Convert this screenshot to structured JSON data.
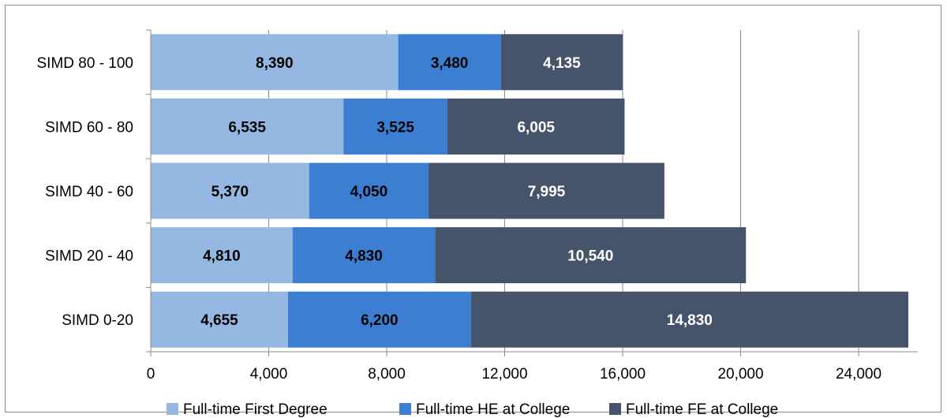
{
  "chart_data": {
    "type": "bar",
    "orientation": "horizontal",
    "stacked": true,
    "categories": [
      "SIMD 80 - 100",
      "SIMD 60 - 80",
      "SIMD 40 - 60",
      "SIMD 20 - 40",
      "SIMD 0-20"
    ],
    "series": [
      {
        "name": "Full-time First Degree",
        "color": "#95b8e3",
        "label_color": "#000000",
        "values": [
          8390,
          6535,
          5370,
          4810,
          4655
        ],
        "labels": [
          "8,390",
          "6,535",
          "5,370",
          "4,810",
          "4,655"
        ]
      },
      {
        "name": "Full-time HE at College",
        "color": "#3c7fd2",
        "label_color": "#000000",
        "values": [
          3480,
          3525,
          4050,
          4830,
          6200
        ],
        "labels": [
          "3,480",
          "3,525",
          "4,050",
          "4,830",
          "6,200"
        ]
      },
      {
        "name": "Full-time FE at College",
        "color": "#46546b",
        "label_color": "#ffffff",
        "values": [
          4135,
          6005,
          7995,
          10540,
          14830
        ],
        "labels": [
          "4,135",
          "6,005",
          "7,995",
          "10,540",
          "14,830"
        ]
      }
    ],
    "xlim": [
      0,
      26000
    ],
    "x_ticks": [
      0,
      4000,
      8000,
      12000,
      16000,
      20000,
      24000
    ],
    "x_tick_labels": [
      "0",
      "4,000",
      "8,000",
      "12,000",
      "16,000",
      "20,000",
      "24,000"
    ],
    "grid": "vertical",
    "legend": "bottom"
  }
}
